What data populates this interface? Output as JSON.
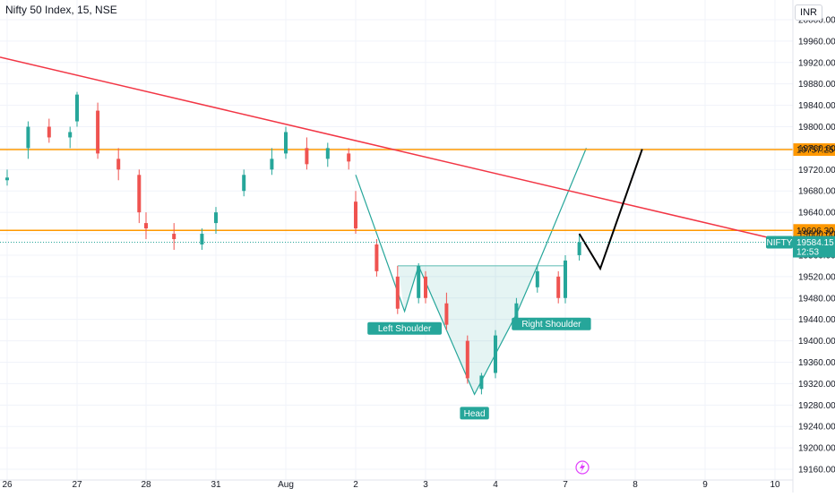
{
  "header": {
    "title": "Nifty 50 Index, 15, NSE",
    "currency_button": "INR"
  },
  "chart_data": {
    "type": "candlestick",
    "title": "Nifty 50 Index, 15, NSE",
    "ylim": [
      19140,
      20020
    ],
    "y_ticks": [
      19160,
      19200,
      19240,
      19280,
      19320,
      19360,
      19400,
      19440,
      19480,
      19520,
      19560,
      19600,
      19640,
      19680,
      19720,
      19760,
      19800,
      19840,
      19880,
      19920,
      19960,
      20000
    ],
    "x_ticks": [
      "26",
      "27",
      "28",
      "31",
      "Aug",
      "2",
      "3",
      "4",
      "7",
      "8",
      "9",
      "10"
    ],
    "grid": true,
    "colors": {
      "up": "#26a69a",
      "down": "#ef5350",
      "trendline": "#f23645",
      "level": "#ff9800",
      "pattern": "#26a69a",
      "projection": "#000000"
    },
    "horizontal_levels": [
      {
        "label": "19757.25",
        "value": 19757.25
      },
      {
        "label": "19606.30",
        "value": 19606.3
      }
    ],
    "last_price": {
      "symbol": "NIFTY",
      "value": "19584.15",
      "countdown": "12:53",
      "y": 19584.15
    },
    "trendline": {
      "from": {
        "x": "before 26",
        "y": 19930
      },
      "to": {
        "x": "10",
        "y": 19590
      }
    },
    "pattern": {
      "name": "Inverse head and shoulders",
      "annotations": [
        "Left Shoulder",
        "Head",
        "Right Shoulder"
      ],
      "points": [
        {
          "x": "2",
          "y": 19710
        },
        {
          "x": "2.7",
          "y": 19455
        },
        {
          "x": "2.9",
          "y": 19540
        },
        {
          "x": "3.7",
          "y": 19300
        },
        {
          "x": "4.3",
          "y": 19450
        },
        {
          "x": "4.6",
          "y": 19540
        },
        {
          "x": "7.3",
          "y": 19760
        }
      ],
      "neckline": 19540
    },
    "projection": [
      {
        "x": "7.2",
        "y": 19600
      },
      {
        "x": "7.5",
        "y": 19535
      },
      {
        "x": "8.1",
        "y": 19758
      }
    ],
    "candles": [
      {
        "x": "26",
        "o": 19700,
        "h": 19720,
        "l": 19690,
        "c": 19705
      },
      {
        "x": "26.3",
        "o": 19760,
        "h": 19810,
        "l": 19740,
        "c": 19800
      },
      {
        "x": "26.6",
        "o": 19800,
        "h": 19815,
        "l": 19770,
        "c": 19780
      },
      {
        "x": "26.9",
        "o": 19780,
        "h": 19800,
        "l": 19760,
        "c": 19790
      },
      {
        "x": "27",
        "o": 19810,
        "h": 19865,
        "l": 19800,
        "c": 19860
      },
      {
        "x": "27.3",
        "o": 19830,
        "h": 19845,
        "l": 19740,
        "c": 19750
      },
      {
        "x": "27.6",
        "o": 19740,
        "h": 19760,
        "l": 19700,
        "c": 19720
      },
      {
        "x": "27.9",
        "o": 19710,
        "h": 19720,
        "l": 19620,
        "c": 19640
      },
      {
        "x": "28",
        "o": 19620,
        "h": 19640,
        "l": 19590,
        "c": 19610
      },
      {
        "x": "28.4",
        "o": 19600,
        "h": 19620,
        "l": 19570,
        "c": 19590
      },
      {
        "x": "28.8",
        "o": 19580,
        "h": 19610,
        "l": 19570,
        "c": 19600
      },
      {
        "x": "31",
        "o": 19620,
        "h": 19650,
        "l": 19600,
        "c": 19640
      },
      {
        "x": "31.4",
        "o": 19680,
        "h": 19720,
        "l": 19670,
        "c": 19710
      },
      {
        "x": "31.8",
        "o": 19720,
        "h": 19760,
        "l": 19710,
        "c": 19740
      },
      {
        "x": "Aug",
        "o": 19750,
        "h": 19800,
        "l": 19740,
        "c": 19790
      },
      {
        "x": "Aug.3",
        "o": 19760,
        "h": 19780,
        "l": 19720,
        "c": 19730
      },
      {
        "x": "Aug.6",
        "o": 19740,
        "h": 19770,
        "l": 19725,
        "c": 19760
      },
      {
        "x": "Aug.9",
        "o": 19750,
        "h": 19760,
        "l": 19720,
        "c": 19735
      },
      {
        "x": "2",
        "o": 19660,
        "h": 19680,
        "l": 19600,
        "c": 19610
      },
      {
        "x": "2.3",
        "o": 19580,
        "h": 19590,
        "l": 19520,
        "c": 19530
      },
      {
        "x": "2.6",
        "o": 19520,
        "h": 19540,
        "l": 19450,
        "c": 19460
      },
      {
        "x": "2.9",
        "o": 19480,
        "h": 19545,
        "l": 19470,
        "c": 19540
      },
      {
        "x": "3",
        "o": 19520,
        "h": 19530,
        "l": 19470,
        "c": 19480
      },
      {
        "x": "3.3",
        "o": 19470,
        "h": 19490,
        "l": 19420,
        "c": 19430
      },
      {
        "x": "3.6",
        "o": 19400,
        "h": 19410,
        "l": 19320,
        "c": 19330
      },
      {
        "x": "3.8",
        "o": 19310,
        "h": 19340,
        "l": 19300,
        "c": 19335
      },
      {
        "x": "4",
        "o": 19340,
        "h": 19420,
        "l": 19330,
        "c": 19410
      },
      {
        "x": "4.3",
        "o": 19440,
        "h": 19480,
        "l": 19430,
        "c": 19470
      },
      {
        "x": "4.6",
        "o": 19500,
        "h": 19540,
        "l": 19490,
        "c": 19530
      },
      {
        "x": "4.9",
        "o": 19520,
        "h": 19530,
        "l": 19470,
        "c": 19480
      },
      {
        "x": "7",
        "o": 19480,
        "h": 19560,
        "l": 19470,
        "c": 19550
      },
      {
        "x": "7.2",
        "o": 19560,
        "h": 19600,
        "l": 19550,
        "c": 19584
      }
    ]
  }
}
